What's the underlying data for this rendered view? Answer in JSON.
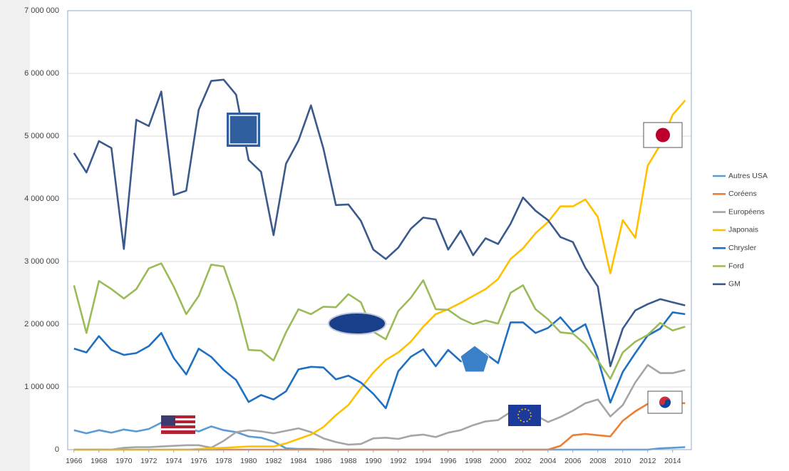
{
  "chart_data": {
    "type": "line",
    "x": [
      1966,
      1967,
      1968,
      1969,
      1970,
      1971,
      1972,
      1973,
      1974,
      1975,
      1976,
      1977,
      1978,
      1979,
      1980,
      1981,
      1982,
      1983,
      1984,
      1985,
      1986,
      1987,
      1988,
      1989,
      1990,
      1991,
      1992,
      1993,
      1994,
      1995,
      1996,
      1997,
      1998,
      1999,
      2000,
      2001,
      2002,
      2003,
      2004,
      2005,
      2006,
      2007,
      2008,
      2009,
      2010,
      2011,
      2012,
      2013,
      2014,
      2015
    ],
    "xlim": [
      1965.5,
      2015.5
    ],
    "xticks": [
      1966,
      1968,
      1970,
      1972,
      1974,
      1976,
      1978,
      1980,
      1982,
      1984,
      1986,
      1988,
      1990,
      1992,
      1994,
      1996,
      1998,
      2000,
      2002,
      2004,
      2006,
      2008,
      2010,
      2012,
      2014
    ],
    "ylim": [
      0,
      7000000
    ],
    "yticks": [
      0,
      {
        "value": 1000000,
        "label": "1 000 000"
      },
      {
        "value": 2000000,
        "label": "2 000 000"
      },
      {
        "value": 3000000,
        "label": "3 000 000"
      },
      {
        "value": 4000000,
        "label": "4 000 000"
      },
      {
        "value": 5000000,
        "label": "5 000 000"
      },
      {
        "value": 6000000,
        "label": "6 000 000"
      },
      {
        "value": 7000000,
        "label": "7 000 000"
      }
    ],
    "grid": true,
    "legend": "right",
    "series": [
      {
        "name": "Autres USA",
        "color": "#5b9bd5",
        "values": [
          310000,
          260000,
          310000,
          270000,
          320000,
          290000,
          330000,
          430000,
          370000,
          350000,
          290000,
          370000,
          310000,
          280000,
          210000,
          190000,
          130000,
          20000,
          10000,
          10000,
          0,
          0,
          0,
          0,
          0,
          0,
          0,
          0,
          0,
          0,
          0,
          0,
          0,
          0,
          0,
          0,
          0,
          0,
          0,
          0,
          0,
          0,
          0,
          0,
          0,
          0,
          0,
          20000,
          30000,
          40000
        ]
      },
      {
        "name": "Coréens",
        "color": "#ed7d31",
        "values": [
          0,
          0,
          0,
          0,
          0,
          0,
          0,
          0,
          0,
          0,
          0,
          0,
          0,
          0,
          0,
          0,
          0,
          0,
          0,
          0,
          0,
          0,
          0,
          0,
          0,
          0,
          0,
          0,
          0,
          0,
          0,
          0,
          0,
          0,
          0,
          0,
          0,
          0,
          0,
          60000,
          230000,
          250000,
          230000,
          210000,
          460000,
          610000,
          730000,
          810000,
          750000,
          740000
        ]
      },
      {
        "name": "Européens",
        "color": "#a5a5a5",
        "values": [
          0,
          0,
          0,
          0,
          30000,
          40000,
          40000,
          50000,
          60000,
          70000,
          70000,
          30000,
          140000,
          280000,
          310000,
          290000,
          260000,
          300000,
          340000,
          280000,
          180000,
          120000,
          80000,
          90000,
          180000,
          190000,
          170000,
          220000,
          240000,
          200000,
          270000,
          310000,
          390000,
          450000,
          470000,
          600000,
          580000,
          550000,
          440000,
          520000,
          620000,
          740000,
          800000,
          530000,
          710000,
          1070000,
          1350000,
          1220000,
          1220000,
          1270000
        ]
      },
      {
        "name": "Japonais",
        "color": "#ffc000",
        "values": [
          0,
          0,
          0,
          0,
          0,
          0,
          0,
          0,
          0,
          0,
          10000,
          20000,
          30000,
          40000,
          50000,
          50000,
          50000,
          100000,
          170000,
          240000,
          360000,
          550000,
          710000,
          980000,
          1230000,
          1430000,
          1550000,
          1720000,
          1960000,
          2160000,
          2240000,
          2340000,
          2450000,
          2560000,
          2720000,
          3040000,
          3210000,
          3450000,
          3630000,
          3880000,
          3880000,
          3990000,
          3710000,
          2810000,
          3660000,
          3380000,
          4530000,
          4860000,
          5340000,
          5570000
        ]
      },
      {
        "name": "Chrysler",
        "color": "#1f70c1",
        "values": [
          1610000,
          1550000,
          1810000,
          1590000,
          1510000,
          1540000,
          1650000,
          1860000,
          1460000,
          1200000,
          1610000,
          1480000,
          1270000,
          1110000,
          760000,
          870000,
          800000,
          930000,
          1280000,
          1320000,
          1310000,
          1120000,
          1180000,
          1070000,
          890000,
          660000,
          1250000,
          1480000,
          1600000,
          1330000,
          1590000,
          1410000,
          1380000,
          1530000,
          1380000,
          2030000,
          2030000,
          1860000,
          1940000,
          2110000,
          1880000,
          2000000,
          1450000,
          750000,
          1240000,
          1540000,
          1820000,
          1930000,
          2190000,
          2160000
        ]
      },
      {
        "name": "Ford",
        "color": "#9bbb59",
        "values": [
          2620000,
          1860000,
          2690000,
          2560000,
          2410000,
          2560000,
          2890000,
          2970000,
          2600000,
          2160000,
          2450000,
          2950000,
          2920000,
          2350000,
          1590000,
          1580000,
          1420000,
          1870000,
          2240000,
          2160000,
          2280000,
          2270000,
          2480000,
          2350000,
          1880000,
          1760000,
          2210000,
          2420000,
          2700000,
          2240000,
          2230000,
          2090000,
          2000000,
          2060000,
          2010000,
          2500000,
          2620000,
          2240000,
          2080000,
          1870000,
          1850000,
          1680000,
          1420000,
          1130000,
          1550000,
          1720000,
          1830000,
          2020000,
          1900000,
          1960000
        ]
      },
      {
        "name": "GM",
        "color": "#3a5a8c",
        "values": [
          4730000,
          4420000,
          4920000,
          4810000,
          3200000,
          5260000,
          5160000,
          5710000,
          4060000,
          4130000,
          5420000,
          5880000,
          5900000,
          5660000,
          4620000,
          4430000,
          3420000,
          4560000,
          4930000,
          5490000,
          4800000,
          3900000,
          3910000,
          3650000,
          3190000,
          3040000,
          3220000,
          3520000,
          3700000,
          3670000,
          3190000,
          3490000,
          3100000,
          3370000,
          3280000,
          3600000,
          4020000,
          3810000,
          3660000,
          3390000,
          3310000,
          2900000,
          2600000,
          1330000,
          1930000,
          2220000,
          2320000,
          2400000,
          2350000,
          2300000
        ]
      }
    ]
  }
}
